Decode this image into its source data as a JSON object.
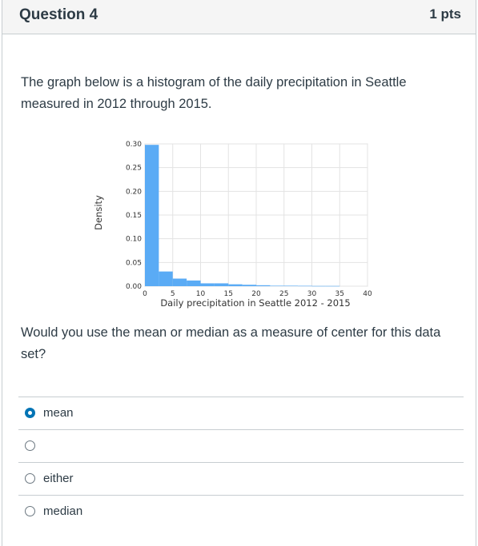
{
  "header": {
    "title": "Question 4",
    "points": "1 pts"
  },
  "prompt": {
    "text": "The graph below is a histogram of the daily precipitation in Seattle measured in 2012 through 2015."
  },
  "chart_data": {
    "type": "bar",
    "title": "",
    "xlabel": "Daily precipitation in Seattle 2012 - 2015",
    "ylabel": "Density",
    "xlim": [
      0,
      40
    ],
    "ylim": [
      0,
      0.3
    ],
    "x_ticks": [
      "0",
      "5",
      "10",
      "15",
      "20",
      "25",
      "30",
      "35",
      "40"
    ],
    "y_ticks": [
      "0.00",
      "0.05",
      "0.10",
      "0.15",
      "0.20",
      "0.25",
      "0.30"
    ],
    "bar_color": "#5aabf5",
    "grid": true,
    "bin_edges": [
      0,
      2.5,
      5,
      7.5,
      10,
      12.5,
      15,
      17.5,
      20,
      22.5,
      25,
      27.5,
      30,
      32.5,
      35
    ],
    "values": [
      0.298,
      0.031,
      0.016,
      0.012,
      0.006,
      0.006,
      0.004,
      0.003,
      0.002,
      0.001,
      0.001,
      0.0008,
      0.0005,
      0.0005
    ]
  },
  "question": {
    "text": "Would you use the mean or median as a measure of center for this data set?"
  },
  "answers": [
    {
      "label": "mean",
      "selected": true
    },
    {
      "label": "",
      "selected": false
    },
    {
      "label": "either",
      "selected": false
    },
    {
      "label": "median",
      "selected": false
    }
  ]
}
